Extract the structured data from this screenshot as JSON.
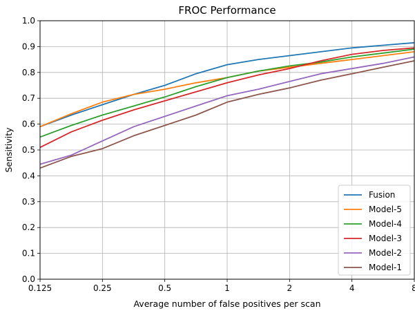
{
  "chart_data": {
    "type": "line",
    "title": "FROC Performance",
    "xlabel": "Average number of false positives per scan",
    "ylabel": "Sensitivity",
    "x_scale": "log2",
    "xlim": [
      0.125,
      8
    ],
    "ylim": [
      0.0,
      1.0
    ],
    "x_ticks": [
      0.125,
      0.25,
      0.5,
      1,
      2,
      4,
      8
    ],
    "x_tick_labels": [
      "0.125",
      "0.25",
      "0.5",
      "1",
      "2",
      "4",
      "8"
    ],
    "y_ticks": [
      0.0,
      0.1,
      0.2,
      0.3,
      0.4,
      0.5,
      0.6,
      0.7,
      0.8,
      0.9,
      1.0
    ],
    "y_tick_labels": [
      "0.0",
      "0.1",
      "0.2",
      "0.3",
      "0.4",
      "0.5",
      "0.6",
      "0.7",
      "0.8",
      "0.9",
      "1.0"
    ],
    "grid": true,
    "legend_position": "lower-right",
    "x": [
      0.125,
      0.177,
      0.25,
      0.354,
      0.5,
      0.707,
      1,
      1.414,
      2,
      2.828,
      4,
      5.657,
      8
    ],
    "series": [
      {
        "name": "Fusion",
        "color": "#1f77b4",
        "values": [
          0.59,
          0.635,
          0.675,
          0.715,
          0.75,
          0.795,
          0.83,
          0.85,
          0.865,
          0.88,
          0.895,
          0.905,
          0.915
        ]
      },
      {
        "name": "Model-5",
        "color": "#ff7f0e",
        "values": [
          0.59,
          0.64,
          0.685,
          0.715,
          0.735,
          0.76,
          0.78,
          0.805,
          0.82,
          0.835,
          0.85,
          0.865,
          0.88
        ]
      },
      {
        "name": "Model-4",
        "color": "#2ca02c",
        "values": [
          0.55,
          0.595,
          0.635,
          0.67,
          0.705,
          0.745,
          0.78,
          0.805,
          0.825,
          0.84,
          0.86,
          0.875,
          0.89
        ]
      },
      {
        "name": "Model-3",
        "color": "#d62728",
        "values": [
          0.51,
          0.57,
          0.615,
          0.655,
          0.69,
          0.725,
          0.76,
          0.79,
          0.815,
          0.845,
          0.87,
          0.885,
          0.895
        ]
      },
      {
        "name": "Model-2",
        "color": "#9467bd",
        "values": [
          0.445,
          0.48,
          0.535,
          0.59,
          0.63,
          0.67,
          0.71,
          0.735,
          0.765,
          0.795,
          0.815,
          0.835,
          0.86
        ]
      },
      {
        "name": "Model-1",
        "color": "#8c564b",
        "values": [
          0.43,
          0.475,
          0.505,
          0.555,
          0.595,
          0.635,
          0.685,
          0.715,
          0.74,
          0.77,
          0.795,
          0.82,
          0.845
        ]
      }
    ]
  }
}
